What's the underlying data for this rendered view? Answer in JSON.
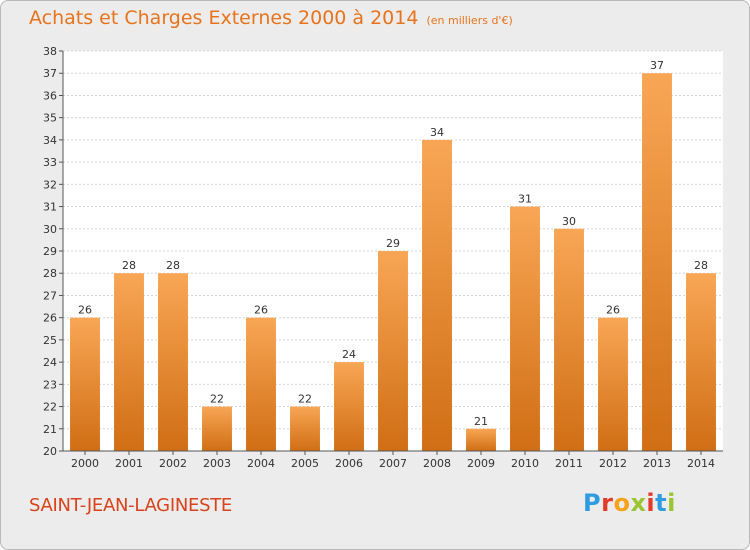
{
  "header": {
    "title": "Achats et Charges Externes 2000 à 2014",
    "subtitle": "(en milliers d'€)"
  },
  "footer": {
    "place": "SAINT-JEAN-LAGINESTE",
    "logo": [
      "P",
      "r",
      "o",
      "x",
      "i",
      "t",
      "i"
    ],
    "logo_colors": [
      "#2f9be0",
      "#e23b2a",
      "#f5a31a",
      "#9ac531",
      "#e23b2a",
      "#2f9be0",
      "#9ac531"
    ]
  },
  "colors": {
    "bar_top": "#f8a655",
    "bar_bottom": "#d06e14",
    "accent": "#e8731a"
  },
  "chart_data": {
    "type": "bar",
    "categories": [
      "2000",
      "2001",
      "2002",
      "2003",
      "2004",
      "2005",
      "2006",
      "2007",
      "2008",
      "2009",
      "2010",
      "2011",
      "2012",
      "2013",
      "2014"
    ],
    "values": [
      26,
      28,
      28,
      22,
      26,
      22,
      24,
      29,
      34,
      21,
      31,
      30,
      26,
      37,
      28
    ],
    "title": "Achats et Charges Externes 2000 à 2014",
    "subtitle": "(en milliers d'€)",
    "xlabel": "",
    "ylabel": "",
    "ylim": [
      20,
      38
    ],
    "yticks": [
      20,
      21,
      22,
      23,
      24,
      25,
      26,
      27,
      28,
      29,
      30,
      31,
      32,
      33,
      34,
      35,
      36,
      37,
      38
    ],
    "grid": true,
    "legend": "none"
  }
}
